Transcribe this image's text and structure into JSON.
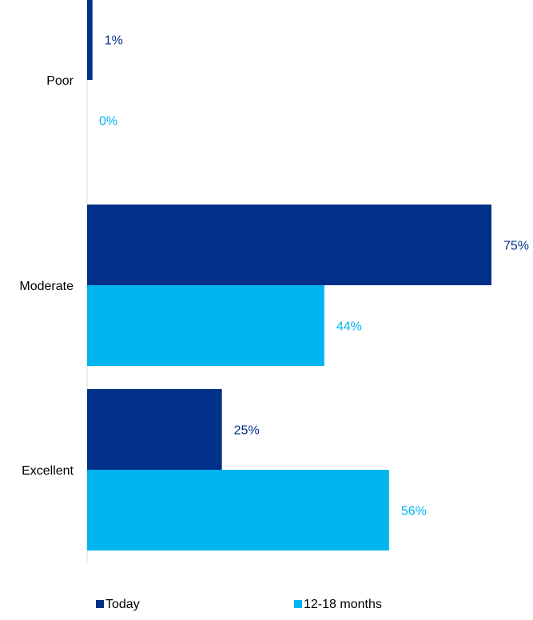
{
  "chart_data": {
    "type": "bar",
    "orientation": "horizontal",
    "categories": [
      "Poor",
      "Moderate",
      "Excellent"
    ],
    "series": [
      {
        "name": "Today",
        "values": [
          1,
          75,
          25
        ],
        "labels": [
          "1%",
          "75%",
          "25%"
        ],
        "color": "#003087"
      },
      {
        "name": "12-18 months",
        "values": [
          0,
          44,
          56
        ],
        "labels": [
          "0%",
          "44%",
          "56%"
        ],
        "color": "#00B5EF"
      }
    ],
    "xlim": [
      0,
      75
    ],
    "grid": false,
    "legend_position": "bottom",
    "axis_color": "#D9D9D9",
    "text_color": "#000000"
  }
}
